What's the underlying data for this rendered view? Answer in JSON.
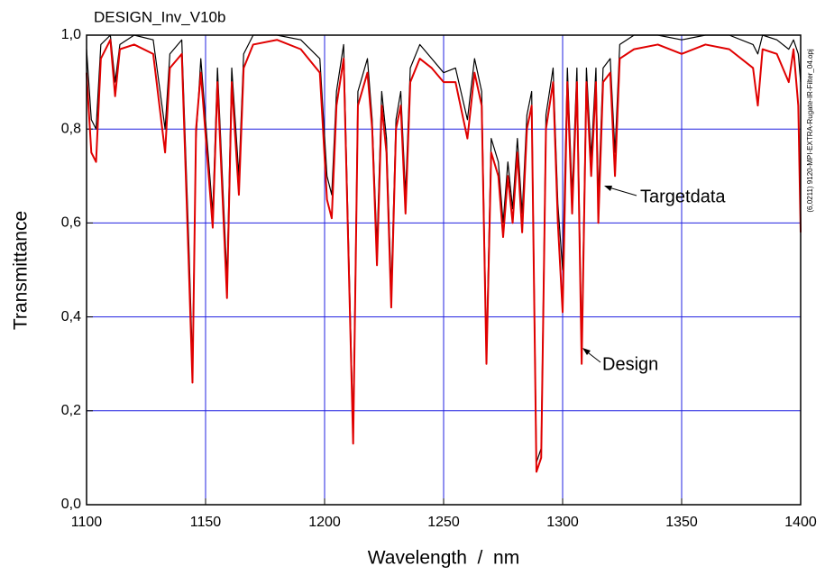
{
  "chart_data": {
    "type": "line",
    "title": "DESIGN_Inv_V10b",
    "x_label": "Wavelength  /  nm",
    "y_label": "Transmittance",
    "side_note": "(6,0211) 9120-MPI-EXTRA-Rugate-IR-Filter_04.opj",
    "x": [
      1100,
      1102,
      1104,
      1106,
      1110,
      1112,
      1114,
      1120,
      1128,
      1133,
      1135,
      1140,
      1143,
      1144.5,
      1146,
      1148,
      1153,
      1155,
      1159,
      1161,
      1164,
      1166,
      1170,
      1180,
      1190,
      1198,
      1201,
      1203,
      1205,
      1208,
      1212,
      1214,
      1218,
      1220,
      1222,
      1224,
      1226,
      1228,
      1230,
      1232,
      1234,
      1236,
      1240,
      1245,
      1250,
      1255,
      1260,
      1263,
      1266,
      1268,
      1270,
      1273,
      1275,
      1277,
      1279,
      1281,
      1283,
      1285,
      1287,
      1289,
      1291,
      1293,
      1296,
      1298,
      1300,
      1302,
      1304,
      1306,
      1308,
      1310,
      1312,
      1314,
      1315,
      1317,
      1320,
      1322,
      1324,
      1330,
      1340,
      1350,
      1360,
      1370,
      1380,
      1382,
      1384,
      1390,
      1395,
      1397,
      1399,
      1400
    ],
    "series": [
      {
        "name": "Targetdata",
        "color": "#000000",
        "values": [
          0.97,
          0.82,
          0.8,
          0.98,
          1.0,
          0.9,
          0.98,
          1.0,
          0.99,
          0.8,
          0.96,
          0.99,
          0.55,
          0.3,
          0.78,
          0.95,
          0.62,
          0.93,
          0.48,
          0.93,
          0.7,
          0.96,
          1.0,
          1.0,
          0.99,
          0.95,
          0.7,
          0.66,
          0.88,
          0.98,
          0.16,
          0.88,
          0.95,
          0.82,
          0.55,
          0.88,
          0.78,
          0.46,
          0.82,
          0.88,
          0.66,
          0.93,
          0.98,
          0.95,
          0.92,
          0.93,
          0.82,
          0.95,
          0.88,
          0.33,
          0.78,
          0.73,
          0.6,
          0.73,
          0.63,
          0.78,
          0.62,
          0.83,
          0.88,
          0.09,
          0.12,
          0.83,
          0.93,
          0.64,
          0.5,
          0.93,
          0.66,
          0.93,
          0.34,
          0.93,
          0.74,
          0.93,
          0.65,
          0.93,
          0.95,
          0.75,
          0.98,
          1.0,
          1.0,
          0.99,
          1.0,
          1.0,
          0.98,
          0.96,
          1.0,
          0.99,
          0.97,
          0.99,
          0.96,
          0.9
        ]
      },
      {
        "name": "Design",
        "color": "#e00000",
        "values": [
          0.92,
          0.75,
          0.73,
          0.95,
          0.99,
          0.87,
          0.97,
          0.98,
          0.96,
          0.75,
          0.93,
          0.96,
          0.5,
          0.26,
          0.8,
          0.92,
          0.59,
          0.9,
          0.44,
          0.9,
          0.66,
          0.93,
          0.98,
          0.99,
          0.97,
          0.92,
          0.65,
          0.61,
          0.85,
          0.95,
          0.13,
          0.85,
          0.92,
          0.8,
          0.51,
          0.85,
          0.75,
          0.42,
          0.8,
          0.85,
          0.62,
          0.9,
          0.95,
          0.93,
          0.9,
          0.9,
          0.78,
          0.92,
          0.85,
          0.3,
          0.75,
          0.7,
          0.57,
          0.7,
          0.6,
          0.75,
          0.58,
          0.8,
          0.85,
          0.07,
          0.1,
          0.8,
          0.9,
          0.6,
          0.41,
          0.9,
          0.62,
          0.9,
          0.3,
          0.9,
          0.7,
          0.9,
          0.6,
          0.9,
          0.92,
          0.7,
          0.95,
          0.97,
          0.98,
          0.96,
          0.98,
          0.97,
          0.93,
          0.85,
          0.97,
          0.96,
          0.9,
          0.97,
          0.85,
          0.58
        ]
      }
    ],
    "xlim": [
      1100,
      1400
    ],
    "xticks": [
      1100,
      1150,
      1200,
      1250,
      1300,
      1350,
      1400
    ],
    "ylim": [
      0,
      1
    ],
    "yticks": [
      {
        "value": 0,
        "label": "0,0"
      },
      {
        "value": 0.2,
        "label": "0,2"
      },
      {
        "value": 0.4,
        "label": "0,4"
      },
      {
        "value": 0.6,
        "label": "0,6"
      },
      {
        "value": 0.8,
        "label": "0,8"
      },
      {
        "value": 1,
        "label": "1,0"
      }
    ],
    "grid": true
  }
}
